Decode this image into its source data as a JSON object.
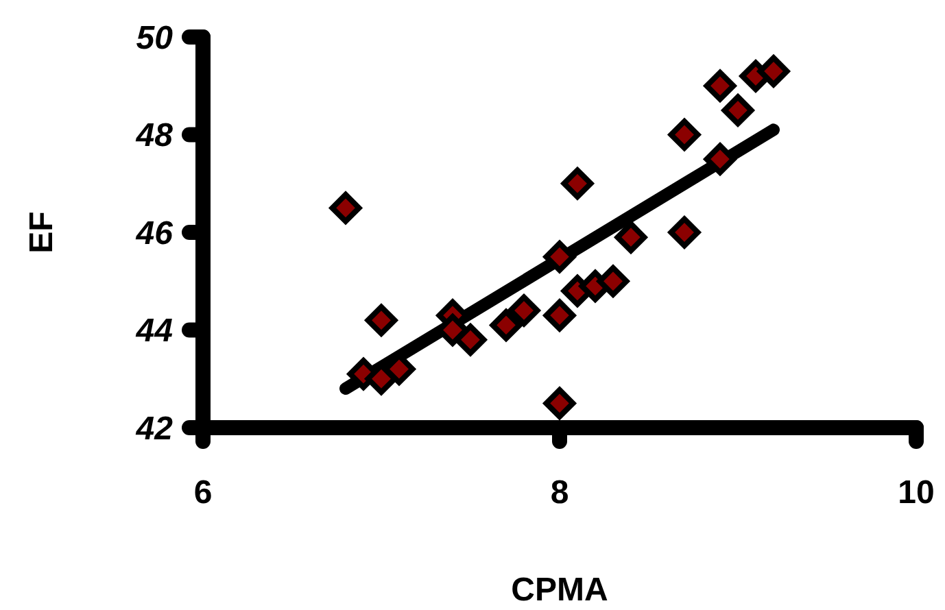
{
  "chart_data": {
    "type": "scatter",
    "xlabel": "CPMA",
    "ylabel": "EF",
    "xlim": [
      6,
      10
    ],
    "ylim": [
      42,
      50
    ],
    "xticks": [
      6,
      8,
      10
    ],
    "yticks": [
      42,
      44,
      46,
      48,
      50
    ],
    "grid": false,
    "marker": "diamond",
    "series": [
      {
        "color": "#8b0000",
        "x": [
          6.8,
          6.9,
          7.0,
          7.0,
          7.1,
          7.4,
          7.4,
          7.5,
          7.7,
          7.8,
          8.0,
          8.0,
          8.0,
          8.1,
          8.1,
          8.2,
          8.3,
          8.4,
          8.7,
          8.7,
          8.9,
          8.9,
          9.0,
          9.1,
          9.2
        ],
        "values": [
          46.5,
          43.1,
          44.2,
          43.0,
          43.2,
          44.3,
          44.0,
          43.8,
          44.1,
          44.4,
          44.3,
          42.5,
          45.5,
          47.0,
          44.8,
          44.9,
          45.0,
          45.9,
          46.0,
          48.0,
          49.0,
          47.5,
          48.5,
          49.2,
          49.3
        ]
      },
      {
        "type": "line",
        "color": "#000000",
        "marker": "none",
        "line_style": "solid",
        "x": [
          6.8,
          9.2
        ],
        "values": [
          42.8,
          48.1
        ]
      }
    ]
  }
}
